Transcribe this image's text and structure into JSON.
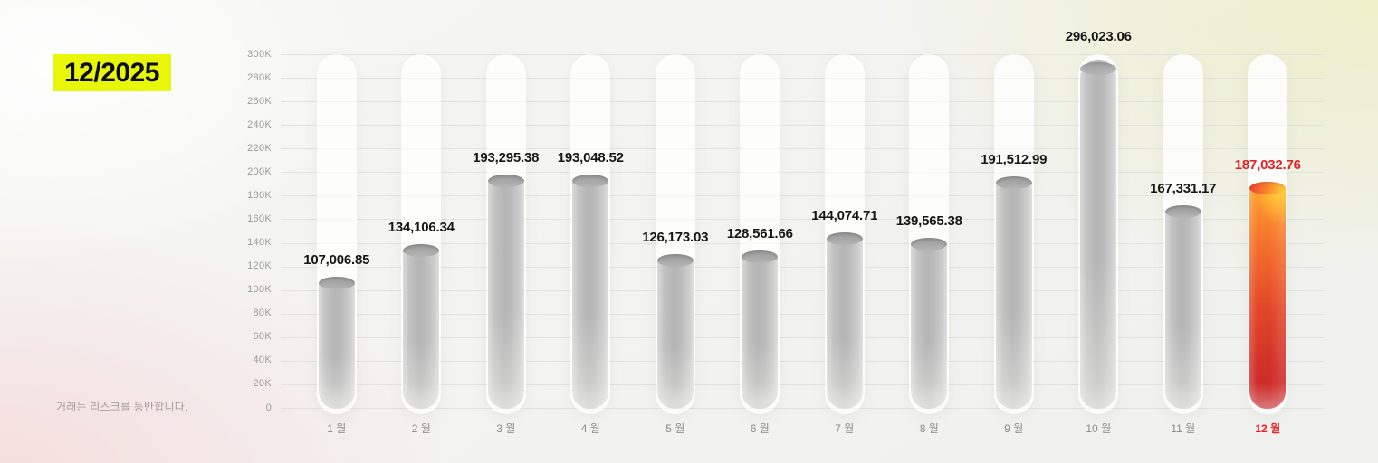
{
  "header": {
    "period_label": "12/2025",
    "highlight_color": "#e8f70a"
  },
  "footer": {
    "disclaimer": "거래는 리스크를 동반합니다."
  },
  "chart_data": {
    "type": "bar",
    "title": "12/2025",
    "xlabel": "",
    "ylabel": "",
    "categories": [
      "1 월",
      "2 월",
      "3 월",
      "4 월",
      "5 월",
      "6 월",
      "7 월",
      "8 월",
      "9 월",
      "10 월",
      "11 월",
      "12 월"
    ],
    "values": [
      107006.85,
      134106.34,
      193295.38,
      193048.52,
      126173.03,
      128561.66,
      144074.71,
      139565.38,
      191512.99,
      296023.06,
      167331.17,
      187032.76
    ],
    "value_labels": [
      "107,006.85",
      "134,106.34",
      "193,295.38",
      "193,048.52",
      "126,173.03",
      "128,561.66",
      "144,074.71",
      "139,565.38",
      "191,512.99",
      "296,023.06",
      "167,331.17",
      "187,032.76"
    ],
    "ylim": [
      0,
      300000
    ],
    "y_tick_interval": 20000,
    "y_tick_labels": [
      "300K",
      "280K",
      "260K",
      "240K",
      "220K",
      "200K",
      "180K",
      "160K",
      "140K",
      "120K",
      "100K",
      "80K",
      "60K",
      "40K",
      "20K",
      "0"
    ],
    "grid": true,
    "legend_position": "none",
    "highlight_index": 11,
    "colors": {
      "bar_default": "#bcbcbc",
      "bar_highlight_top": "#ffd43c",
      "bar_highlight_mid": "#f4702c",
      "bar_highlight_bottom": "#ca2d30",
      "value_label": "#161616",
      "value_label_highlight": "#e42127",
      "axis_label": "#9b9b9b",
      "month_label": "#8a8a8a",
      "month_label_highlight": "#ed2026",
      "gridline": "#e2e2df",
      "track": "#fdfdfc"
    }
  }
}
